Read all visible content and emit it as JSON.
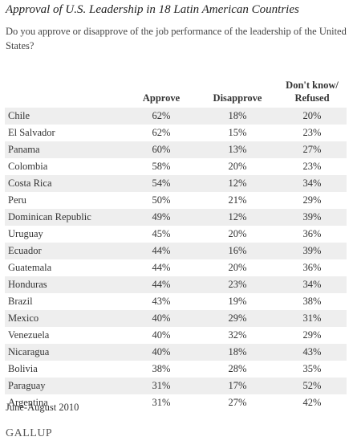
{
  "header": {
    "title": "Approval of U.S. Leadership in 18 Latin American Countries",
    "subtitle": "Do you approve or disapprove of the job performance of the leadership of the United States?"
  },
  "table": {
    "columns": [
      "",
      "Approve",
      "Disapprove",
      "Don't know/ Refused"
    ],
    "rows": [
      [
        "Chile",
        "62%",
        "18%",
        "20%"
      ],
      [
        "El Salvador",
        "62%",
        "15%",
        "23%"
      ],
      [
        "Panama",
        "60%",
        "13%",
        "27%"
      ],
      [
        "Colombia",
        "58%",
        "20%",
        "23%"
      ],
      [
        "Costa Rica",
        "54%",
        "12%",
        "34%"
      ],
      [
        "Peru",
        "50%",
        "21%",
        "29%"
      ],
      [
        "Dominican Republic",
        "49%",
        "12%",
        "39%"
      ],
      [
        "Uruguay",
        "45%",
        "20%",
        "36%"
      ],
      [
        "Ecuador",
        "44%",
        "16%",
        "39%"
      ],
      [
        "Guatemala",
        "44%",
        "20%",
        "36%"
      ],
      [
        "Honduras",
        "44%",
        "23%",
        "34%"
      ],
      [
        "Brazil",
        "43%",
        "19%",
        "38%"
      ],
      [
        "Mexico",
        "40%",
        "29%",
        "31%"
      ],
      [
        "Venezuela",
        "40%",
        "32%",
        "29%"
      ],
      [
        "Nicaragua",
        "40%",
        "18%",
        "43%"
      ],
      [
        "Bolivia",
        "38%",
        "28%",
        "35%"
      ],
      [
        "Paraguay",
        "31%",
        "17%",
        "52%"
      ],
      [
        "Argentina",
        "31%",
        "27%",
        "42%"
      ]
    ]
  },
  "footer": {
    "note": "June-August 2010",
    "source": "GALLUP"
  }
}
